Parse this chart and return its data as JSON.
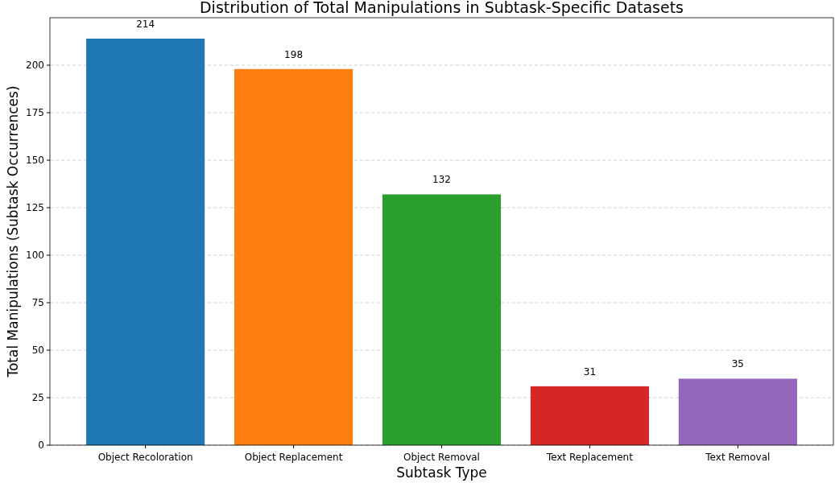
{
  "chart_data": {
    "type": "bar",
    "title": "Distribution of Total Manipulations in Subtask-Specific Datasets",
    "xlabel": "Subtask Type",
    "ylabel": "Total Manipulations (Subtask Occurrences)",
    "categories": [
      "Object Recoloration",
      "Object Replacement",
      "Object Removal",
      "Text Replacement",
      "Text Removal"
    ],
    "values": [
      214,
      198,
      132,
      31,
      35
    ],
    "colors": [
      "#1f77b4",
      "#ff7f0e",
      "#2ca02c",
      "#d62728",
      "#9467bd"
    ],
    "ylim": [
      0,
      225
    ],
    "yticks": [
      0,
      25,
      50,
      75,
      100,
      125,
      150,
      175,
      200
    ],
    "grid": "y",
    "data_labels": true
  }
}
